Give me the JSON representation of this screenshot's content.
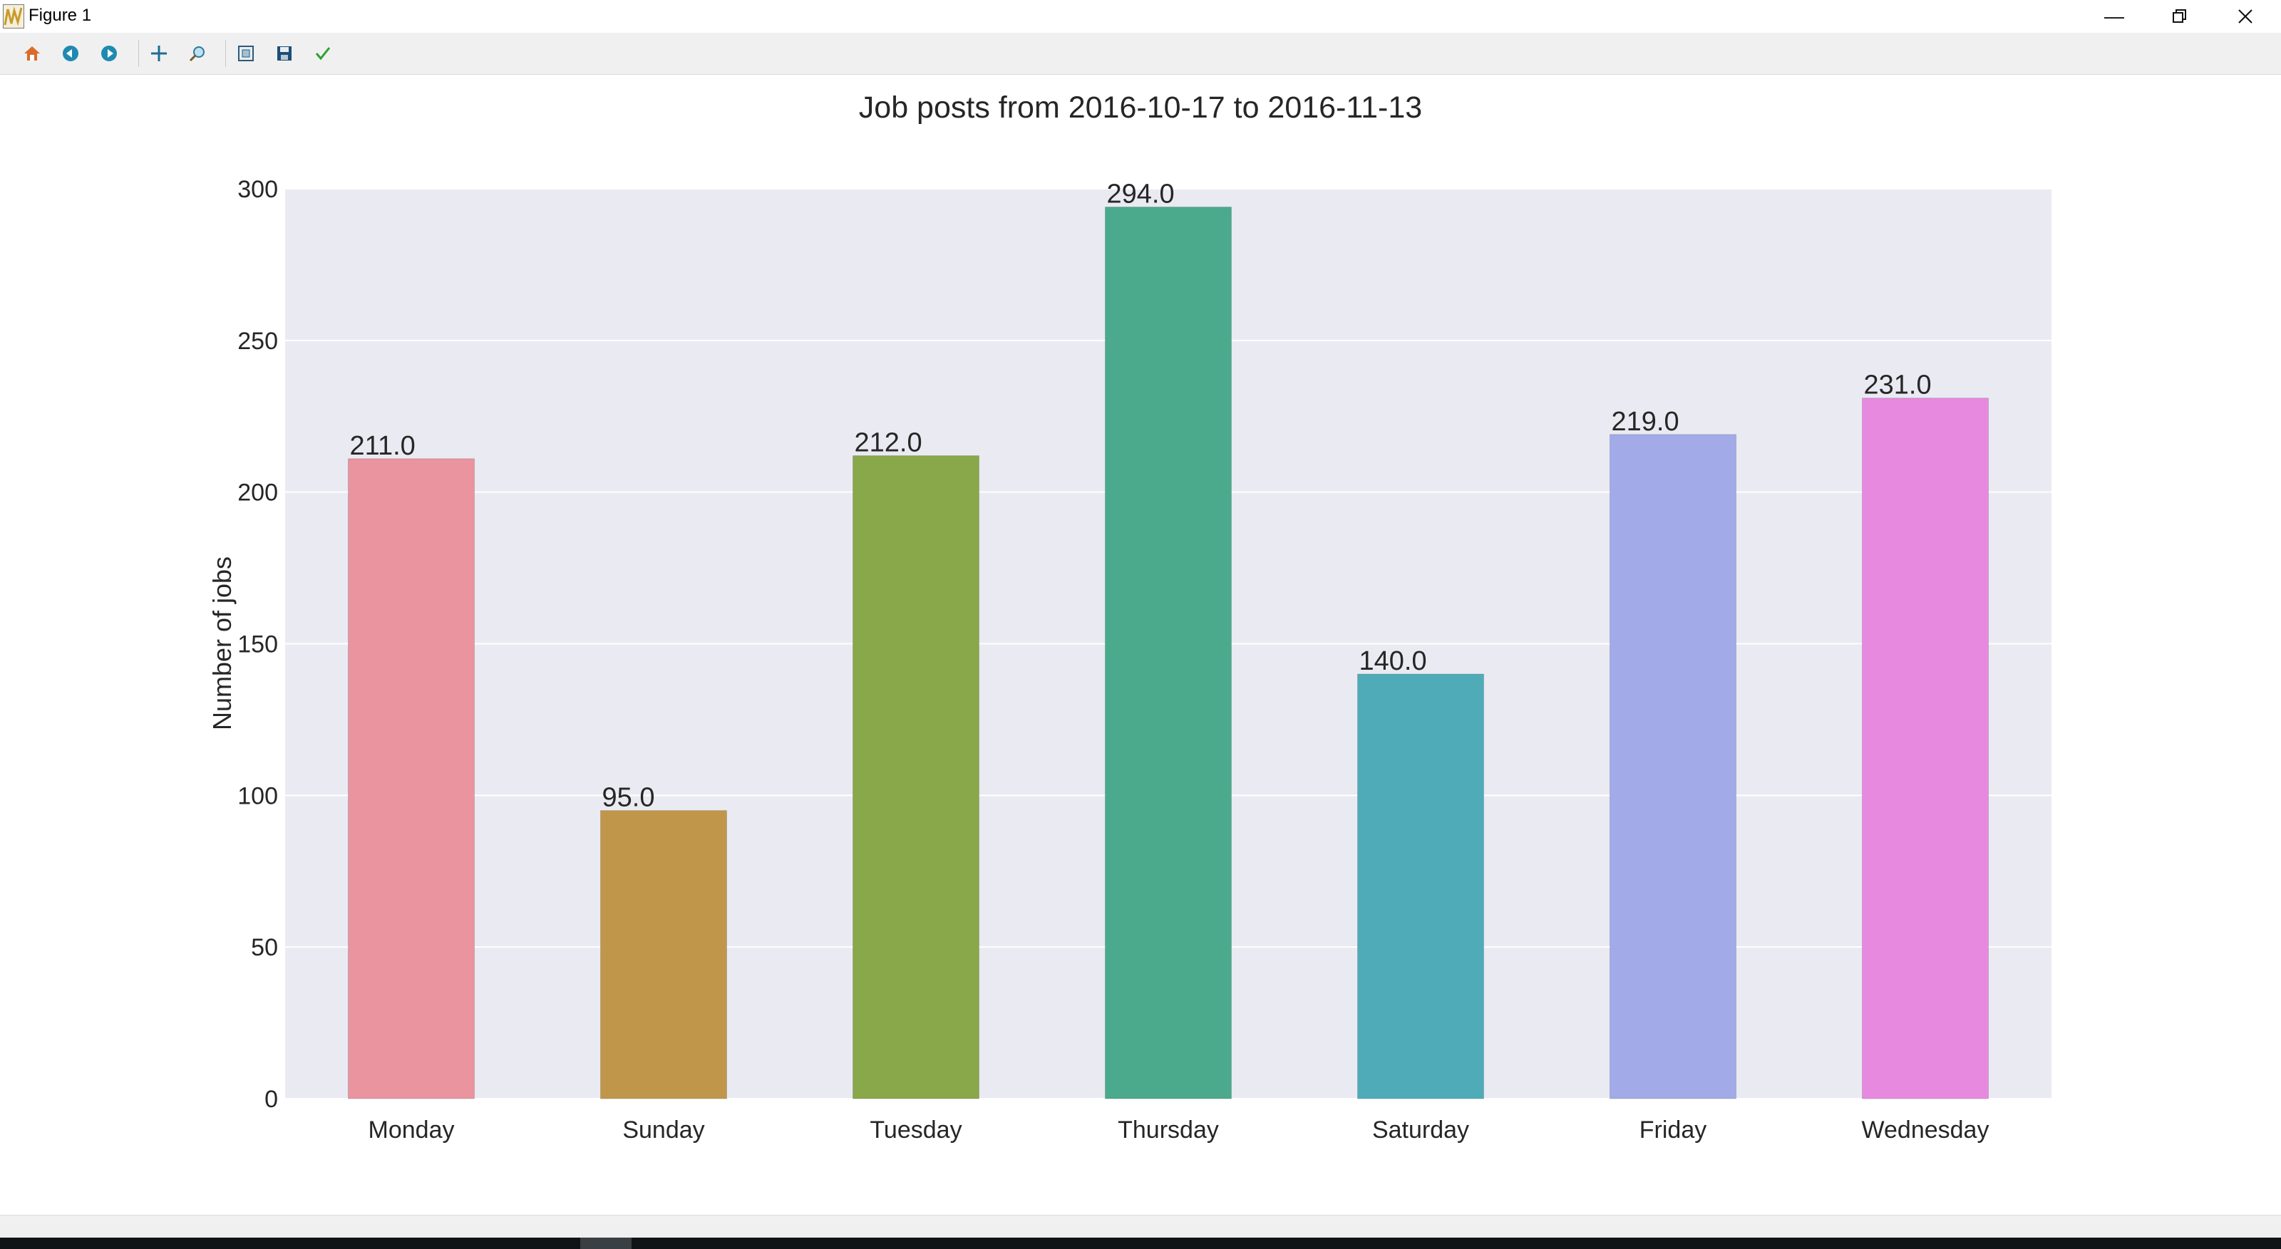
{
  "window": {
    "title": "Figure 1"
  },
  "toolbar": {
    "buttons": [
      {
        "name": "home-icon"
      },
      {
        "name": "back-arrow-icon"
      },
      {
        "name": "forward-arrow-icon"
      },
      {
        "name": "pan-icon"
      },
      {
        "name": "zoom-icon"
      },
      {
        "name": "configure-subplots-icon"
      },
      {
        "name": "save-icon"
      },
      {
        "name": "edit-parameters-icon"
      }
    ]
  },
  "chart_data": {
    "type": "bar",
    "title": "Job posts from 2016-10-17 to 2016-11-13",
    "xlabel": "",
    "ylabel": "Number of jobs",
    "categories": [
      "Monday",
      "Sunday",
      "Tuesday",
      "Thursday",
      "Saturday",
      "Friday",
      "Wednesday"
    ],
    "values": [
      211.0,
      95.0,
      212.0,
      294.0,
      140.0,
      219.0,
      231.0
    ],
    "value_labels": [
      "211.0",
      "95.0",
      "212.0",
      "294.0",
      "140.0",
      "219.0",
      "231.0"
    ],
    "colors": [
      "#e9949f",
      "#c0974a",
      "#89a84a",
      "#4aaa8b",
      "#4fabb8",
      "#a2abe8",
      "#e78adf"
    ],
    "ylim": [
      0,
      300
    ],
    "yticks": [
      0,
      50,
      100,
      150,
      200,
      250,
      300
    ],
    "ytick_labels": [
      "0",
      "50",
      "100",
      "150",
      "200",
      "250",
      "300"
    ],
    "grid": true,
    "background": "#eaeaf2"
  }
}
